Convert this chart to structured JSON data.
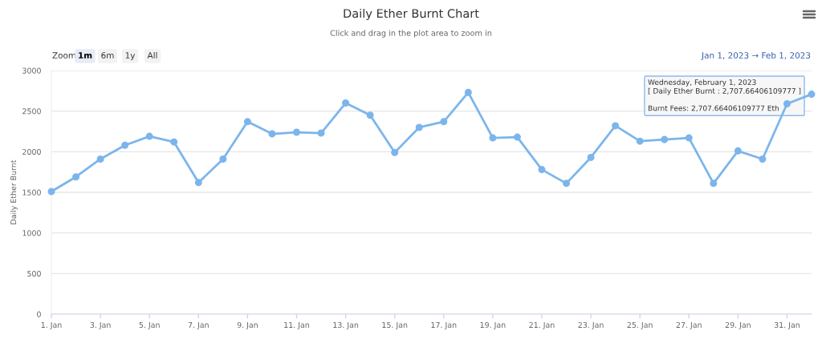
{
  "chart_data": {
    "type": "line",
    "title": "Daily Ether Burnt Chart",
    "subtitle": "Click and drag in the plot area to zoom in",
    "ylabel": "Daily Ether Burnt",
    "x": [
      "2023-01-01",
      "2023-01-02",
      "2023-01-03",
      "2023-01-04",
      "2023-01-05",
      "2023-01-06",
      "2023-01-07",
      "2023-01-08",
      "2023-01-09",
      "2023-01-10",
      "2023-01-11",
      "2023-01-12",
      "2023-01-13",
      "2023-01-14",
      "2023-01-15",
      "2023-01-16",
      "2023-01-17",
      "2023-01-18",
      "2023-01-19",
      "2023-01-20",
      "2023-01-21",
      "2023-01-22",
      "2023-01-23",
      "2023-01-24",
      "2023-01-25",
      "2023-01-26",
      "2023-01-27",
      "2023-01-28",
      "2023-01-29",
      "2023-01-30",
      "2023-01-31",
      "2023-02-01"
    ],
    "values": [
      1510,
      1690,
      1910,
      2080,
      2190,
      2120,
      1620,
      1910,
      2370,
      2220,
      2240,
      2230,
      2600,
      2450,
      1990,
      2300,
      2370,
      2730,
      2170,
      2180,
      1780,
      1610,
      1930,
      2320,
      2130,
      2150,
      2170,
      1610,
      2010,
      1910,
      2590,
      2707.66406109777
    ],
    "color": "#7cb5ec",
    "marker": "circle",
    "line_style": "solid",
    "xlim": [
      "2023-01-01",
      "2023-02-01"
    ],
    "xticks": [
      {
        "value": "2023-01-01",
        "label": "1. Jan"
      },
      {
        "value": "2023-01-03",
        "label": "3. Jan"
      },
      {
        "value": "2023-01-05",
        "label": "5. Jan"
      },
      {
        "value": "2023-01-07",
        "label": "7. Jan"
      },
      {
        "value": "2023-01-09",
        "label": "9. Jan"
      },
      {
        "value": "2023-01-11",
        "label": "11. Jan"
      },
      {
        "value": "2023-01-13",
        "label": "13. Jan"
      },
      {
        "value": "2023-01-15",
        "label": "15. Jan"
      },
      {
        "value": "2023-01-17",
        "label": "17. Jan"
      },
      {
        "value": "2023-01-19",
        "label": "19. Jan"
      },
      {
        "value": "2023-01-21",
        "label": "21. Jan"
      },
      {
        "value": "2023-01-23",
        "label": "23. Jan"
      },
      {
        "value": "2023-01-25",
        "label": "25. Jan"
      },
      {
        "value": "2023-01-27",
        "label": "27. Jan"
      },
      {
        "value": "2023-01-29",
        "label": "29. Jan"
      },
      {
        "value": "2023-01-31",
        "label": "31. Jan"
      }
    ],
    "ylim": [
      0,
      3000
    ],
    "yticks": [
      0,
      500,
      1000,
      1500,
      2000,
      2500,
      3000
    ],
    "grid": "y",
    "annotations": [
      "Zoom",
      "1m",
      "6m",
      "1y",
      "All",
      "Jan 1, 2023 → Feb 1, 2023",
      "Wednesday, February 1, 2023\n[ Daily Ether Burnt : 2,707.66406109777 ]\n\nBurnt Fees: 2,707.66406109777 Eth"
    ]
  }
}
